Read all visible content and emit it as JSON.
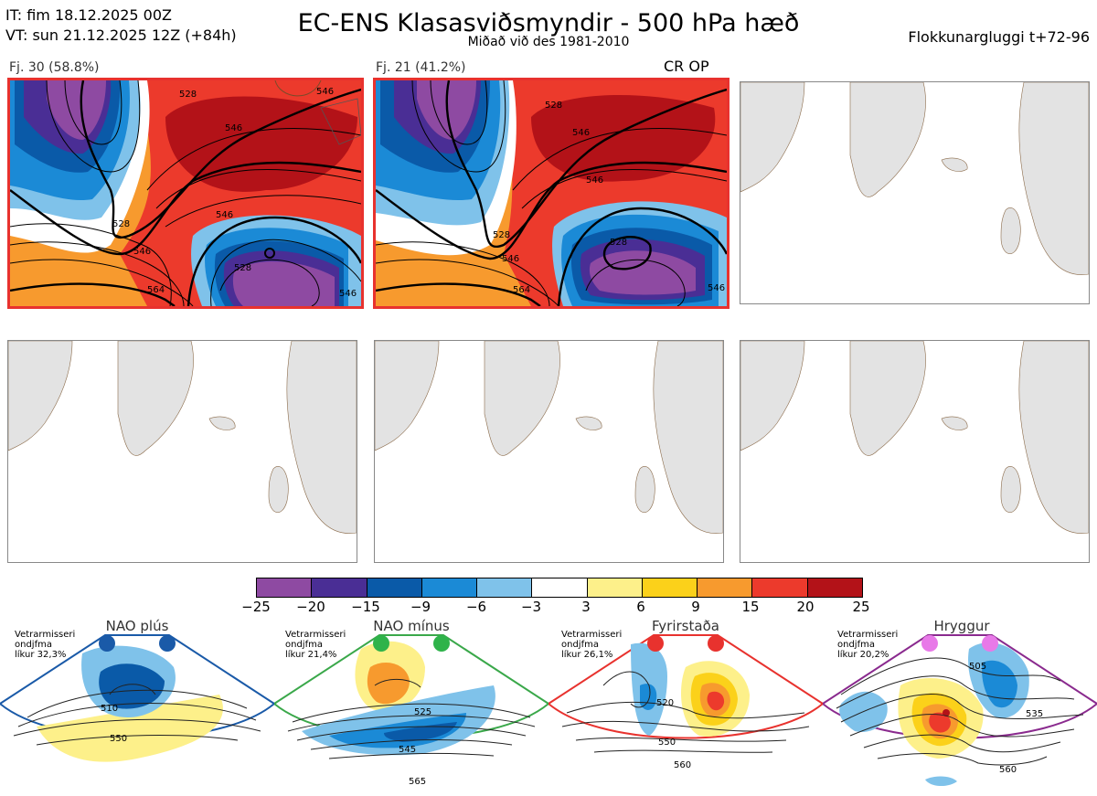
{
  "header": {
    "it": "IT: fim 18.12.2025 00Z",
    "vt": "VT: sun 21.12.2025 12Z  (+84h)",
    "title": "EC-ENS Klasasviðsmyndir - 500 hPa hæð",
    "subtitle": "Miðað við des 1981-2010",
    "window": "Flokkunargluggi t+72-96"
  },
  "panels": [
    {
      "label": "Fj. 30 (58.8%)",
      "selected": true
    },
    {
      "label": "Fj. 21 (41.2%)",
      "selected": true,
      "tag": "CR OP"
    },
    {
      "label": "",
      "selected": false
    },
    {
      "label": "",
      "selected": false
    },
    {
      "label": "",
      "selected": false
    },
    {
      "label": "",
      "selected": false
    }
  ],
  "contour_labels": {
    "panel1": [
      "528",
      "546",
      "546",
      "528",
      "546",
      "564",
      "528",
      "546",
      "546"
    ],
    "panel2": [
      "528",
      "546",
      "546",
      "528",
      "546",
      "564",
      "528",
      "546"
    ]
  },
  "colorbar": {
    "ticks": [
      "−25",
      "−20",
      "−15",
      "−9",
      "−6",
      "−3",
      "3",
      "6",
      "9",
      "15",
      "20",
      "25"
    ],
    "colors": [
      "#8e4aa2",
      "#4a2e95",
      "#0a5aa8",
      "#1b8ad6",
      "#7fc2ea",
      "#ffffff",
      "#fdf08a",
      "#fbd11a",
      "#f79a2e",
      "#ec3a2c",
      "#b31218"
    ]
  },
  "regimes": [
    {
      "name": "NAO plús",
      "season": "Vetrarmisseri",
      "subtitle": "ondjfma",
      "prob": "líkur 32,3%",
      "color": "#1a5aa8",
      "dot": "#1a5aa8",
      "labels": [
        "510",
        "550"
      ]
    },
    {
      "name": "NAO mínus",
      "season": "Vetrarmisseri",
      "subtitle": "ondjfma",
      "prob": "líkur 21,4%",
      "color": "#3aa84a",
      "dot": "#2fb34a",
      "labels": [
        "525",
        "545",
        "565"
      ]
    },
    {
      "name": "Fyrirstaða",
      "season": "Vetrarmisseri",
      "subtitle": "ondjfma",
      "prob": "líkur 26,1%",
      "color": "#e8322e",
      "dot": "#e8322e",
      "labels": [
        "520",
        "550",
        "560"
      ]
    },
    {
      "name": "Hryggur",
      "season": "Vetrarmisseri",
      "subtitle": "ondjfma",
      "prob": "líkur 20,2%",
      "color": "#8a2a8e",
      "dot": "#e879e8",
      "labels": [
        "505",
        "535",
        "560"
      ]
    }
  ],
  "chart_data": {
    "type": "heatmap",
    "title": "EC-ENS Klasasviðsmyndir - 500 hPa hæð",
    "variable": "500 hPa height anomaly",
    "colorbar_ticks": [
      -25,
      -20,
      -15,
      -9,
      -6,
      -3,
      3,
      6,
      9,
      15,
      20,
      25
    ],
    "clusters": [
      {
        "name": "Fj. 30",
        "members": 30,
        "percent": 58.8
      },
      {
        "name": "Fj. 21",
        "members": 21,
        "percent": 41.2
      }
    ],
    "regime_probabilities": [
      {
        "regime": "NAO plús",
        "percent": 32.3
      },
      {
        "regime": "NAO mínus",
        "percent": 21.4
      },
      {
        "regime": "Fyrirstaða",
        "percent": 26.1
      },
      {
        "regime": "Hryggur",
        "percent": 20.2
      }
    ]
  }
}
